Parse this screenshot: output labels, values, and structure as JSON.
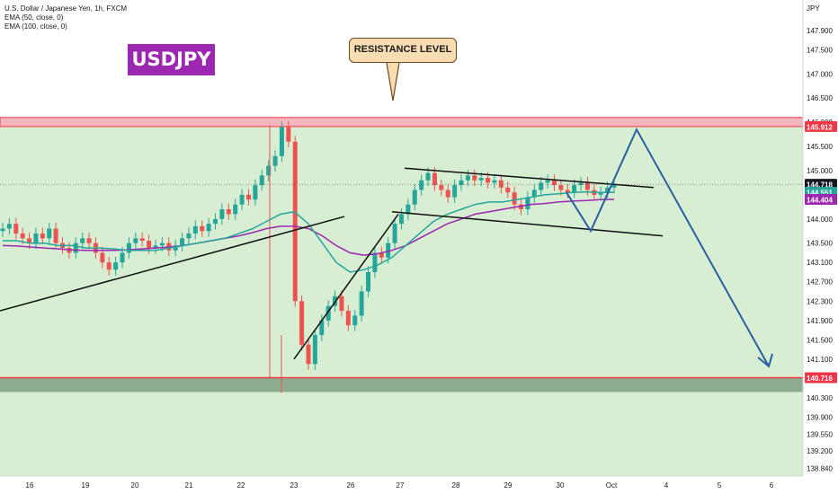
{
  "symbol_info": {
    "title": "U.S. Dollar / Japanese Yen, 1h, FXCM",
    "ema50": "EMA (50, close, 0)",
    "ema100": "EMA (100, close, 0)"
  },
  "badge": "USDJPY",
  "callout": "RESISTANCE LEVEL",
  "colors": {
    "bull": "#26a69a",
    "bear": "#ef5350",
    "ema50": "#26a69a",
    "ema100": "#9c27b0",
    "resistance_zone": "#f4b6bd",
    "resistance_line": "#f23645",
    "support_zone": "#80a080",
    "projection": "#2a5fa0",
    "price_bg": "#c9e8c4"
  },
  "chart_data": {
    "type": "candlestick",
    "unit": "JPY",
    "ylim": [
      138.7,
      148.4
    ],
    "y_ticks": [
      "147.900",
      "147.500",
      "147.000",
      "146.500",
      "146.000",
      "145.500",
      "145.000",
      "144.000",
      "143.500",
      "143.100",
      "142.700",
      "142.300",
      "141.900",
      "141.500",
      "141.100",
      "140.300",
      "139.900",
      "139.550",
      "139.200",
      "138.840"
    ],
    "x_tick_labels": [
      "16",
      "19",
      "20",
      "21",
      "22",
      "23",
      "26",
      "27",
      "28",
      "29",
      "30",
      "Oct",
      "4",
      "5",
      "6"
    ],
    "zones": {
      "resistance": {
        "low": 145.912,
        "high": 146.1,
        "label": "145.912"
      },
      "support": {
        "low": 140.42,
        "high": 140.716,
        "label": "140.716"
      }
    },
    "price_labels": [
      {
        "name": "last",
        "value": 144.718,
        "label": "144.718"
      },
      {
        "name": "ema50",
        "value": 144.551,
        "label": "144.551"
      },
      {
        "name": "ema100",
        "value": 144.404,
        "label": "144.404"
      }
    ],
    "series_close": [
      143.8,
      143.9,
      143.7,
      143.6,
      143.5,
      143.7,
      143.6,
      143.8,
      143.5,
      143.4,
      143.3,
      143.5,
      143.6,
      143.5,
      143.3,
      143.1,
      142.95,
      143.1,
      143.3,
      143.5,
      143.6,
      143.55,
      143.4,
      143.45,
      143.5,
      143.35,
      143.45,
      143.6,
      143.7,
      143.85,
      143.75,
      143.9,
      144.0,
      144.2,
      144.1,
      144.3,
      144.5,
      144.4,
      144.7,
      144.9,
      145.1,
      145.3,
      145.9,
      145.6,
      142.3,
      141.4,
      141.0,
      141.6,
      141.9,
      142.2,
      142.4,
      142.1,
      141.8,
      142.0,
      142.5,
      142.9,
      143.3,
      143.2,
      143.5,
      143.9,
      144.1,
      144.3,
      144.6,
      144.8,
      144.95,
      144.7,
      144.6,
      144.45,
      144.7,
      144.8,
      144.9,
      144.8,
      144.85,
      144.75,
      144.8,
      144.65,
      144.55,
      144.3,
      144.2,
      144.45,
      144.6,
      144.75,
      144.8,
      144.7,
      144.6,
      144.55,
      144.7,
      144.75,
      144.6,
      144.5,
      144.55,
      144.65,
      144.72
    ],
    "ema50": [
      143.55,
      143.55,
      143.5,
      143.5,
      143.45,
      143.45,
      143.4,
      143.4,
      143.38,
      143.35,
      143.35,
      143.35,
      143.4,
      143.45,
      143.5,
      143.55,
      143.6,
      143.7,
      143.8,
      143.95,
      144.1,
      144.15,
      143.9,
      143.5,
      143.1,
      142.9,
      142.95,
      143.05,
      143.2,
      143.45,
      143.7,
      143.95,
      144.1,
      144.2,
      144.3,
      144.35,
      144.35,
      144.4,
      144.45,
      144.5,
      144.52,
      144.55,
      144.56,
      144.55,
      144.55
    ],
    "ema100": [
      143.45,
      143.44,
      143.42,
      143.4,
      143.38,
      143.36,
      143.35,
      143.35,
      143.35,
      143.36,
      143.38,
      143.4,
      143.42,
      143.45,
      143.5,
      143.55,
      143.6,
      143.65,
      143.72,
      143.8,
      143.85,
      143.85,
      143.8,
      143.65,
      143.45,
      143.3,
      143.25,
      143.28,
      143.35,
      143.45,
      143.6,
      143.75,
      143.9,
      144.0,
      144.1,
      144.15,
      144.2,
      144.25,
      144.3,
      144.32,
      144.35,
      144.37,
      144.38,
      144.4,
      144.404
    ],
    "trendlines": [
      {
        "name": "rising-support-1",
        "points": [
          [
            0,
            142.1
          ],
          [
            383,
            144.05
          ]
        ]
      },
      {
        "name": "rising-channel",
        "points": [
          [
            327,
            141.1
          ],
          [
            443,
            144.1
          ]
        ]
      },
      {
        "name": "flag-upper",
        "points": [
          [
            450,
            145.05
          ],
          [
            727,
            144.65
          ]
        ]
      },
      {
        "name": "flag-lower",
        "points": [
          [
            436,
            144.15
          ],
          [
            737,
            143.65
          ]
        ]
      }
    ],
    "projection_path": [
      [
        630,
        144.55
      ],
      [
        657,
        143.75
      ],
      [
        708,
        145.85
      ],
      [
        855,
        140.95
      ]
    ]
  }
}
